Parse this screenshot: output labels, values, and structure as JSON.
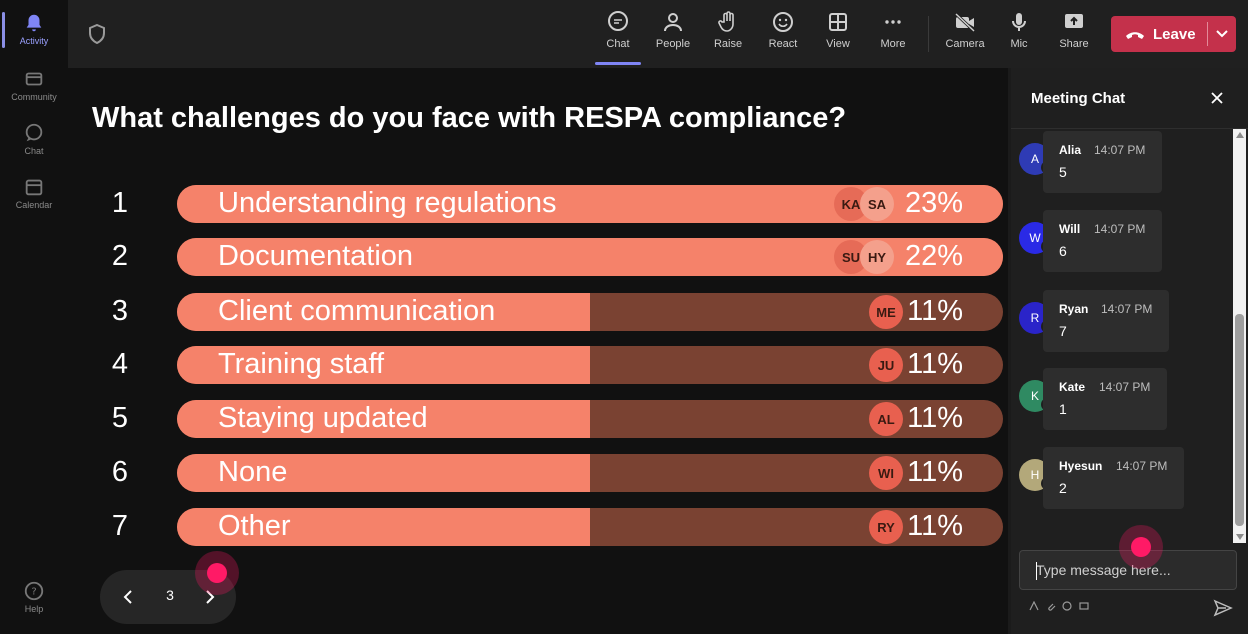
{
  "rail": {
    "items": [
      {
        "label": "Activity",
        "icon": "bell-icon",
        "active": true
      },
      {
        "label": "Community",
        "icon": "community-icon",
        "active": false
      },
      {
        "label": "Chat",
        "icon": "chat-icon",
        "active": false
      },
      {
        "label": "Calendar",
        "icon": "calendar-icon",
        "active": false
      }
    ],
    "help_label": "Help"
  },
  "toolbar": {
    "buttons": [
      {
        "label": "Chat",
        "icon": "chat-icon",
        "active": true
      },
      {
        "label": "People",
        "icon": "people-icon",
        "active": false
      },
      {
        "label": "Raise",
        "icon": "raise-hand-icon",
        "active": false
      },
      {
        "label": "React",
        "icon": "react-emoji-icon",
        "active": false
      },
      {
        "label": "View",
        "icon": "view-grid-icon",
        "active": false
      },
      {
        "label": "More",
        "icon": "more-icon",
        "active": false
      },
      {
        "label": "Camera",
        "icon": "camera-off-icon",
        "active": false
      },
      {
        "label": "Mic",
        "icon": "mic-icon",
        "active": false
      },
      {
        "label": "Share",
        "icon": "share-icon",
        "active": false
      }
    ],
    "leave_label": "Leave",
    "leave_color": "#c4314b"
  },
  "poll": {
    "question": "What challenges do you face with RESPA compliance?",
    "options": [
      {
        "num": "1",
        "label": "Understanding regulations",
        "percent": "23%",
        "fill": 1.0,
        "avatars": [
          "KA",
          "SA"
        ]
      },
      {
        "num": "2",
        "label": "Documentation",
        "percent": "22%",
        "fill": 1.0,
        "avatars": [
          "SU",
          "HY"
        ]
      },
      {
        "num": "3",
        "label": "Client communication",
        "percent": "11%",
        "fill": 0.5,
        "avatars": [
          "ME"
        ]
      },
      {
        "num": "4",
        "label": "Training staff",
        "percent": "11%",
        "fill": 0.5,
        "avatars": [
          "JU"
        ]
      },
      {
        "num": "5",
        "label": "Staying updated",
        "percent": "11%",
        "fill": 0.5,
        "avatars": [
          "AL"
        ]
      },
      {
        "num": "6",
        "label": "None",
        "percent": "11%",
        "fill": 0.5,
        "avatars": [
          "WI"
        ]
      },
      {
        "num": "7",
        "label": "Other",
        "percent": "11%",
        "fill": 0.5,
        "avatars": [
          "RY"
        ]
      }
    ],
    "bar_color": "#f5826a",
    "track_color": "#7a4232"
  },
  "pager": {
    "page": "3"
  },
  "chat": {
    "title": "Meeting Chat",
    "messages": [
      {
        "initial": "A",
        "name": "Alia",
        "time": "14:07 PM",
        "text": "5",
        "avatar_color": "#2e3bb5"
      },
      {
        "initial": "W",
        "name": "Will",
        "time": "14:07 PM",
        "text": "6",
        "avatar_color": "#2a2ae6"
      },
      {
        "initial": "R",
        "name": "Ryan",
        "time": "14:07 PM",
        "text": "7",
        "avatar_color": "#2a24c9"
      },
      {
        "initial": "K",
        "name": "Kate",
        "time": "14:07 PM",
        "text": "1",
        "avatar_color": "#2f8a62"
      },
      {
        "initial": "H",
        "name": "Hyesun",
        "time": "14:07 PM",
        "text": "2",
        "avatar_color": "#b3a87a"
      }
    ],
    "input_placeholder": "Type message here..."
  }
}
